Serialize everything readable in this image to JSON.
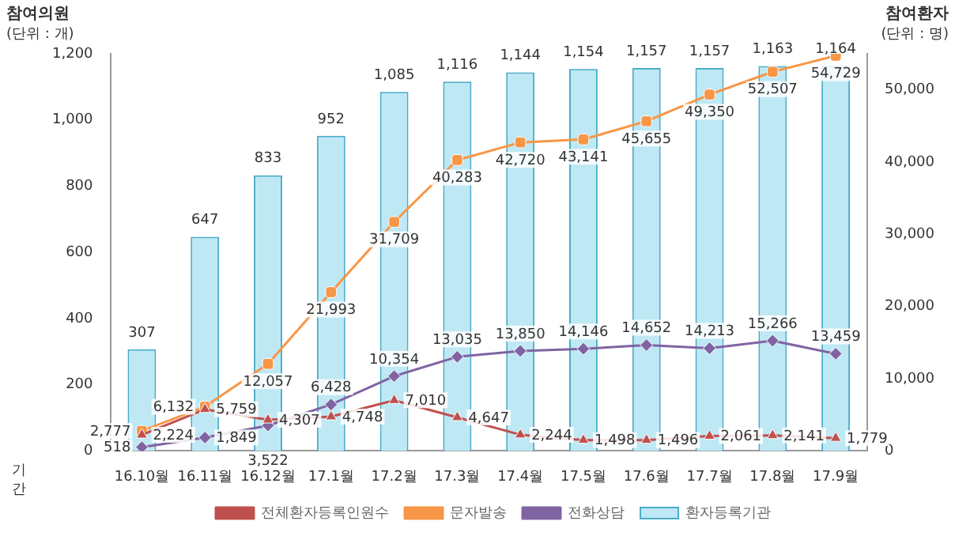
{
  "chart_data": {
    "type": "bar",
    "ylabel": "참여의원 (단위 : 개)",
    "y2label": "참여환자 (단위 : 명)",
    "xlabel": "기간",
    "categories": [
      "16.10월",
      "16.11월",
      "16.12월",
      "17.1월",
      "17.2월",
      "17.3월",
      "17.4월",
      "17.5월",
      "17.6월",
      "17.7월",
      "17.8월",
      "17.9월"
    ],
    "series": [
      {
        "name": "환자등록기관",
        "color": "#bfe8f5",
        "values": [
          307,
          647,
          833,
          952,
          1085,
          1116,
          1144,
          1154,
          1157,
          1157,
          1163,
          1164
        ],
        "value_labels": [
          "307",
          "647",
          "833",
          "952",
          "1,085",
          "1,116",
          "1,144",
          "1,154",
          "1,157",
          "1,157",
          "1,163",
          "1,164"
        ]
      },
      {
        "name": "전체환자등록인원수",
        "type": "line",
        "axis": "y2",
        "marker": "triangle",
        "color": "#c0504d",
        "values": [
          2224,
          5759,
          4307,
          4748,
          7010,
          4647,
          2244,
          1498,
          1496,
          2061,
          2141,
          1779
        ],
        "value_labels": [
          "2,224",
          "5,759",
          "4,307",
          "4,748",
          "7,010",
          "4,647",
          "2,244",
          "1,498",
          "1,496",
          "2,061",
          "2,141",
          "1,779"
        ]
      },
      {
        "name": "문자발송",
        "type": "line",
        "axis": "y2",
        "marker": "square",
        "color": "#f79646",
        "values": [
          2777,
          6132,
          12057,
          21993,
          31709,
          40283,
          42720,
          43141,
          45655,
          49350,
          52507,
          54729
        ],
        "value_labels": [
          "2,777",
          "6,132",
          "12,057",
          "21,993",
          "31,709",
          "40,283",
          "42,720",
          "43,141",
          "45,655",
          "49,350",
          "52,507",
          "54,729"
        ]
      },
      {
        "name": "전화상담",
        "type": "line",
        "axis": "y2",
        "marker": "diamond",
        "color": "#8064a2",
        "values": [
          518,
          1849,
          3522,
          6428,
          10354,
          13035,
          13850,
          14146,
          14652,
          14213,
          15266,
          13459
        ],
        "value_labels": [
          "518",
          "1,849",
          "3,522",
          "6,428",
          "10,354",
          "13,035",
          "13,850",
          "14,146",
          "14,652",
          "14,213",
          "15,266",
          "13,459"
        ]
      }
    ],
    "ylim": [
      0,
      1200
    ],
    "yticks": [
      0,
      200,
      400,
      600,
      800,
      {
        "value": 1000,
        "label": "1,000"
      },
      {
        "value": 1200,
        "label": "1,200"
      }
    ],
    "y2lim": [
      0,
      55000
    ],
    "y2ticks": [
      0,
      {
        "value": 10000,
        "label": "10,000"
      },
      {
        "value": 20000,
        "label": "20,000"
      },
      {
        "value": 30000,
        "label": "30,000"
      },
      {
        "value": 40000,
        "label": "40,000"
      },
      {
        "value": 50000,
        "label": "50,000"
      }
    ],
    "grid": false,
    "legend": "bottom"
  }
}
